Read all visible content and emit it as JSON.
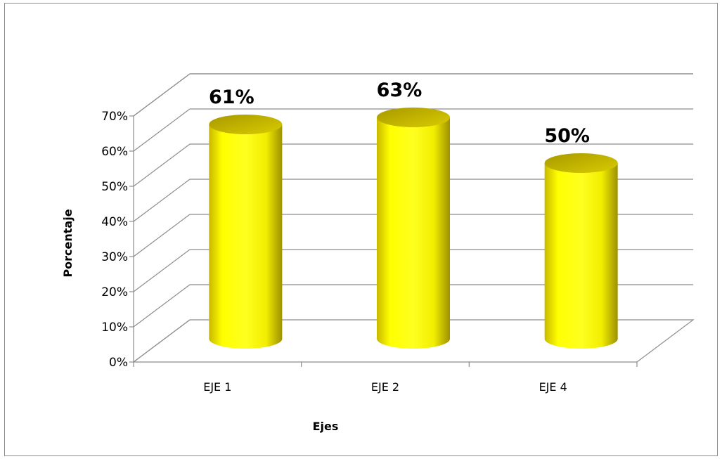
{
  "chart_data": {
    "type": "bar",
    "style": "3d-cylinder",
    "categories": [
      "EJE 1",
      "EJE 2",
      "EJE 4"
    ],
    "values": [
      61,
      63,
      50
    ],
    "data_labels": [
      "61%",
      "63%",
      "50%"
    ],
    "xlabel": "Ejes",
    "ylabel": "Porcentaje",
    "ylim": [
      0,
      70
    ],
    "ytick_labels": [
      "0%",
      "10%",
      "20%",
      "30%",
      "40%",
      "50%",
      "60%",
      "70%"
    ],
    "grid": true,
    "legend": "none",
    "colors": {
      "bar": "#ffff00",
      "bar_shade": "#b5a600",
      "grid": "#8c8c8c"
    }
  }
}
